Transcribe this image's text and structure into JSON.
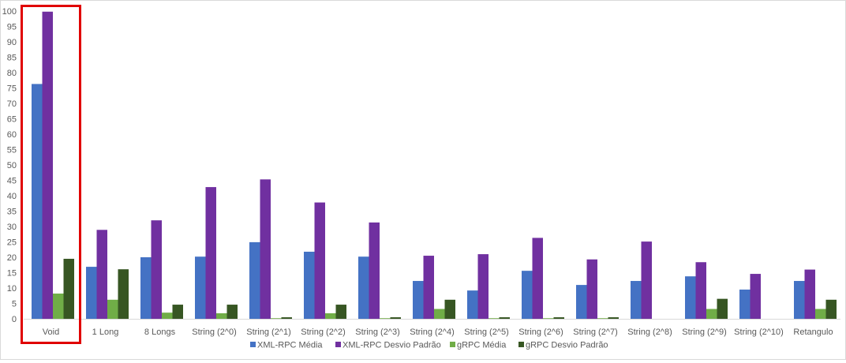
{
  "chart_data": {
    "type": "bar",
    "title": "",
    "xlabel": "",
    "ylabel": "",
    "ylim": [
      0,
      100
    ],
    "ytick_step": 5,
    "grid": false,
    "legend_position": "bottom",
    "highlight_category": "Void",
    "highlight_color": "#e00000",
    "categories": [
      "Void",
      "1 Long",
      "8 Longs",
      "String (2^0)",
      "String (2^1)",
      "String (2^2)",
      "String (2^3)",
      "String (2^4)",
      "String (2^5)",
      "String (2^6)",
      "String (2^7)",
      "String (2^8)",
      "String (2^9)",
      "String (2^10)",
      "Retangulo"
    ],
    "series": [
      {
        "name": "XML-RPC Média",
        "color": "#4472c4",
        "values": [
          76.3,
          16.9,
          20.0,
          20.2,
          24.9,
          21.8,
          20.2,
          12.3,
          9.2,
          15.6,
          11.0,
          12.3,
          13.8,
          9.5,
          12.3
        ]
      },
      {
        "name": "XML-RPC Desvio Padrão",
        "color": "#7030a0",
        "values": [
          99.8,
          28.9,
          32.0,
          42.8,
          45.3,
          37.8,
          31.3,
          20.5,
          21.0,
          26.3,
          19.3,
          25.1,
          18.4,
          14.6,
          16.0
        ]
      },
      {
        "name": "gRPC Média",
        "color": "#70ad47",
        "values": [
          8.2,
          6.2,
          2.0,
          1.8,
          0.2,
          1.8,
          0.2,
          3.2,
          0.2,
          0.2,
          0.2,
          0.0,
          3.2,
          0.0,
          3.2
        ]
      },
      {
        "name": "gRPC Desvio Padrão",
        "color": "#375623",
        "values": [
          19.5,
          16.1,
          4.6,
          4.6,
          0.5,
          4.6,
          0.5,
          6.2,
          0.5,
          0.5,
          0.5,
          0.0,
          6.5,
          0.0,
          6.2
        ]
      }
    ]
  }
}
